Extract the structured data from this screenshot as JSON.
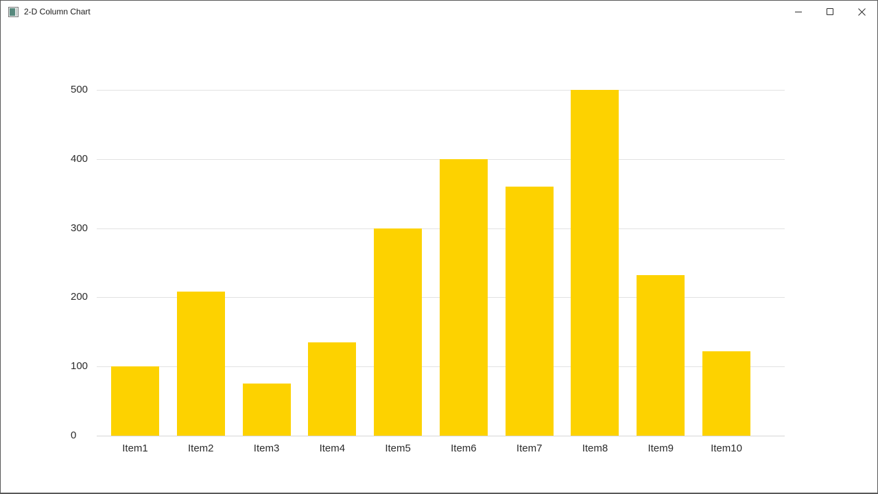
{
  "window": {
    "title": "2-D Column Chart",
    "controls": [
      "minimize",
      "maximize",
      "close"
    ]
  },
  "chart_data": {
    "type": "bar",
    "title": "2-D Column Chart",
    "categories": [
      "Item1",
      "Item2",
      "Item3",
      "Item4",
      "Item5",
      "Item6",
      "Item7",
      "Item8",
      "Item9",
      "Item10"
    ],
    "values": [
      100,
      208,
      75,
      135,
      300,
      400,
      360,
      500,
      232,
      122
    ],
    "xlabel": "",
    "ylabel": "",
    "ylim": [
      0,
      500
    ],
    "yticks": [
      0,
      100,
      200,
      300,
      400,
      500
    ],
    "grid": true,
    "legend": false,
    "bar_color": "#FDD200",
    "gridline_color": "#E2E2E2",
    "axisline_color": "#D6D6D6",
    "label_color": "#2B2B2B"
  }
}
